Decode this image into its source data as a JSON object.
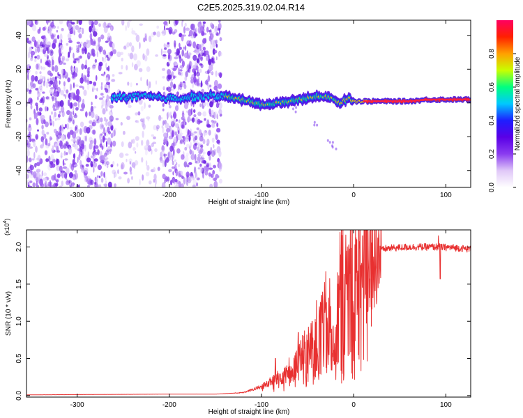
{
  "title": "C2E5.2025.319.02.04.R14",
  "chart_data": [
    {
      "type": "heatmap",
      "panel": "spectrogram",
      "xlabel": "Height of straight line (km)",
      "ylabel": "Frequency (Hz)",
      "xlim": [
        -355,
        127
      ],
      "ylim": [
        -50,
        49
      ],
      "xticks": [
        -300,
        -200,
        -100,
        0,
        100
      ],
      "xtick_labels": [
        "-300",
        "-200",
        "-100",
        "0",
        "100"
      ],
      "yticks": [
        -40,
        -20,
        0,
        20,
        40
      ],
      "ytick_labels": [
        "-40",
        "-20",
        "0",
        "20",
        "40"
      ],
      "colorbar": {
        "label": "Normalized spectral amplitude",
        "range": [
          0,
          1
        ],
        "ticks": [
          0.0,
          0.2,
          0.4,
          0.6,
          0.8
        ],
        "tick_labels": [
          "0.0",
          "0.2",
          "0.4",
          "0.6",
          "0.8"
        ],
        "colors": [
          "#ffffff",
          "#e0c8f8",
          "#8a3cf0",
          "#5a00e6",
          "#1e1eff",
          "#00c8ff",
          "#00ff80",
          "#c8ff00",
          "#ffa000",
          "#ff2000",
          "#ff0060"
        ]
      },
      "noise_regions": [
        {
          "x_from": -355,
          "x_to": -262,
          "density": "high"
        },
        {
          "x_from": -262,
          "x_to": -207,
          "density": "low"
        },
        {
          "x_from": -207,
          "x_to": -144,
          "density": "high"
        }
      ],
      "signal_track": {
        "description": "carrier line near 0 Hz, weak/noisy before -140 km, strong after",
        "points": [
          [
            -262,
            3
          ],
          [
            -230,
            4
          ],
          [
            -210,
            3
          ],
          [
            -190,
            3
          ],
          [
            -160,
            4
          ],
          [
            -140,
            4
          ],
          [
            -120,
            2
          ],
          [
            -100,
            -1
          ],
          [
            -80,
            0
          ],
          [
            -60,
            2
          ],
          [
            -40,
            4
          ],
          [
            -25,
            3
          ],
          [
            -15,
            0
          ],
          [
            -5,
            3
          ],
          [
            0,
            1
          ],
          [
            20,
            1
          ],
          [
            60,
            1
          ],
          [
            80,
            2
          ],
          [
            95,
            2
          ],
          [
            127,
            2
          ]
        ]
      },
      "secondary_trace": [
        [
          -65,
          -4
        ],
        [
          -40,
          -12
        ],
        [
          -25,
          -22
        ],
        [
          -22,
          -26
        ]
      ]
    },
    {
      "type": "line",
      "panel": "snr",
      "xlabel": "Height of straight line (km)",
      "ylabel": "SNR (10 * v/v)",
      "scale_label_prefix": "(x10",
      "scale_label_exp": "4",
      "scale_label_suffix": ")",
      "xlim": [
        -355,
        127
      ],
      "ylim": [
        -0.02,
        2.23
      ],
      "xticks": [
        -300,
        -200,
        -100,
        0,
        100
      ],
      "xtick_labels": [
        "-300",
        "-200",
        "-100",
        "0",
        "100"
      ],
      "yticks": [
        0.0,
        0.5,
        1.0,
        1.5,
        2.0
      ],
      "ytick_labels": [
        "0.0",
        "0.5",
        "1.0",
        "1.5",
        "2.0"
      ],
      "series": [
        {
          "name": "SNR",
          "color": "#e83030",
          "trend": [
            [
              -355,
              0.01
            ],
            [
              -200,
              0.02
            ],
            [
              -150,
              0.02
            ],
            [
              -120,
              0.04
            ],
            [
              -100,
              0.12
            ],
            [
              -80,
              0.25
            ],
            [
              -60,
              0.45
            ],
            [
              -40,
              0.75
            ],
            [
              -25,
              1.05
            ],
            [
              -10,
              1.35
            ],
            [
              0,
              1.55
            ],
            [
              10,
              1.75
            ],
            [
              20,
              1.9
            ],
            [
              35,
              1.98
            ],
            [
              60,
              2.0
            ],
            [
              90,
              2.0
            ],
            [
              110,
              1.99
            ],
            [
              127,
              1.97
            ]
          ],
          "spikes": [
            [
              -85,
              0.5
            ],
            [
              -60,
              0.85
            ],
            [
              -45,
              1.0
            ],
            [
              -35,
              1.35
            ],
            [
              -25,
              1.2
            ],
            [
              -12,
              1.65
            ],
            [
              -8,
              1.5
            ],
            [
              10,
              2.15
            ],
            [
              92,
              2.15
            ],
            [
              94,
              1.57
            ]
          ]
        }
      ]
    }
  ]
}
